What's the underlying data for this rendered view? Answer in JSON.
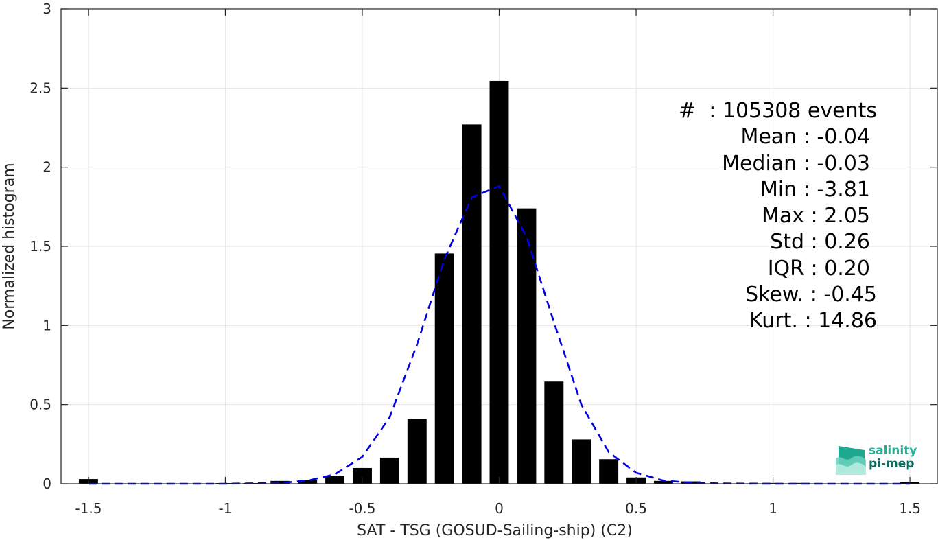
{
  "chart_data": {
    "type": "bar",
    "xlabel": "SAT - TSG (GOSUD-Sailing-ship) (C2)",
    "ylabel": "Normalized histogram",
    "xlim": [
      -1.6,
      1.6
    ],
    "ylim": [
      0,
      3
    ],
    "xticks": [
      -1.5,
      -1,
      -0.5,
      0,
      0.5,
      1,
      1.5
    ],
    "xtick_labels": [
      "-1.5",
      "-1",
      "-0.5",
      "0",
      "0.5",
      "1",
      "1.5"
    ],
    "yticks": [
      0,
      0.5,
      1,
      1.5,
      2,
      2.5,
      3
    ],
    "ytick_labels": [
      "0",
      "0.5",
      "1",
      "1.5",
      "2",
      "2.5",
      "3"
    ],
    "grid": true,
    "bar_color": "#000000",
    "bars": [
      {
        "x": -1.5,
        "y": 0.03
      },
      {
        "x": -1.0,
        "y": 0.003
      },
      {
        "x": -0.9,
        "y": 0.003
      },
      {
        "x": -0.8,
        "y": 0.018
      },
      {
        "x": -0.7,
        "y": 0.025
      },
      {
        "x": -0.6,
        "y": 0.05
      },
      {
        "x": -0.5,
        "y": 0.1
      },
      {
        "x": -0.4,
        "y": 0.165
      },
      {
        "x": -0.3,
        "y": 0.41
      },
      {
        "x": -0.2,
        "y": 1.455
      },
      {
        "x": -0.1,
        "y": 2.27
      },
      {
        "x": 0.0,
        "y": 2.545
      },
      {
        "x": 0.1,
        "y": 1.74
      },
      {
        "x": 0.2,
        "y": 0.645
      },
      {
        "x": 0.3,
        "y": 0.28
      },
      {
        "x": 0.4,
        "y": 0.155
      },
      {
        "x": 0.5,
        "y": 0.04
      },
      {
        "x": 0.6,
        "y": 0.018
      },
      {
        "x": 0.7,
        "y": 0.015
      },
      {
        "x": 1.0,
        "y": 0.005
      },
      {
        "x": 1.1,
        "y": 0.005
      },
      {
        "x": 1.5,
        "y": 0.012
      }
    ],
    "fit_curve": {
      "style": "dashed",
      "color": "#0000e0",
      "x": [
        -1.5,
        -1.2,
        -1.0,
        -0.8,
        -0.7,
        -0.6,
        -0.5,
        -0.4,
        -0.3,
        -0.2,
        -0.1,
        0.0,
        0.1,
        0.2,
        0.3,
        0.4,
        0.5,
        0.6,
        0.7,
        0.8,
        1.0,
        1.2,
        1.5
      ],
      "y": [
        0.0,
        0.0,
        0.0,
        0.005,
        0.02,
        0.06,
        0.17,
        0.42,
        0.88,
        1.42,
        1.81,
        1.88,
        1.56,
        1.02,
        0.5,
        0.2,
        0.07,
        0.02,
        0.007,
        0.002,
        0.0,
        0.0,
        0.0
      ]
    }
  },
  "stats": {
    "count": "#  : 105308 events",
    "mean": "Mean : -0.04",
    "median": "Median : -0.03",
    "min": "Min : -3.81",
    "max": "Max : 2.05",
    "std": "Std : 0.26",
    "iqr": "IQR : 0.20",
    "skew": "Skew. : -0.45",
    "kurt": "Kurt. : 14.86"
  },
  "logo": {
    "line1": "salinity",
    "line2": "pi-mep",
    "color_light": "#1fb39a",
    "color_dark": "#0e6b5e"
  }
}
